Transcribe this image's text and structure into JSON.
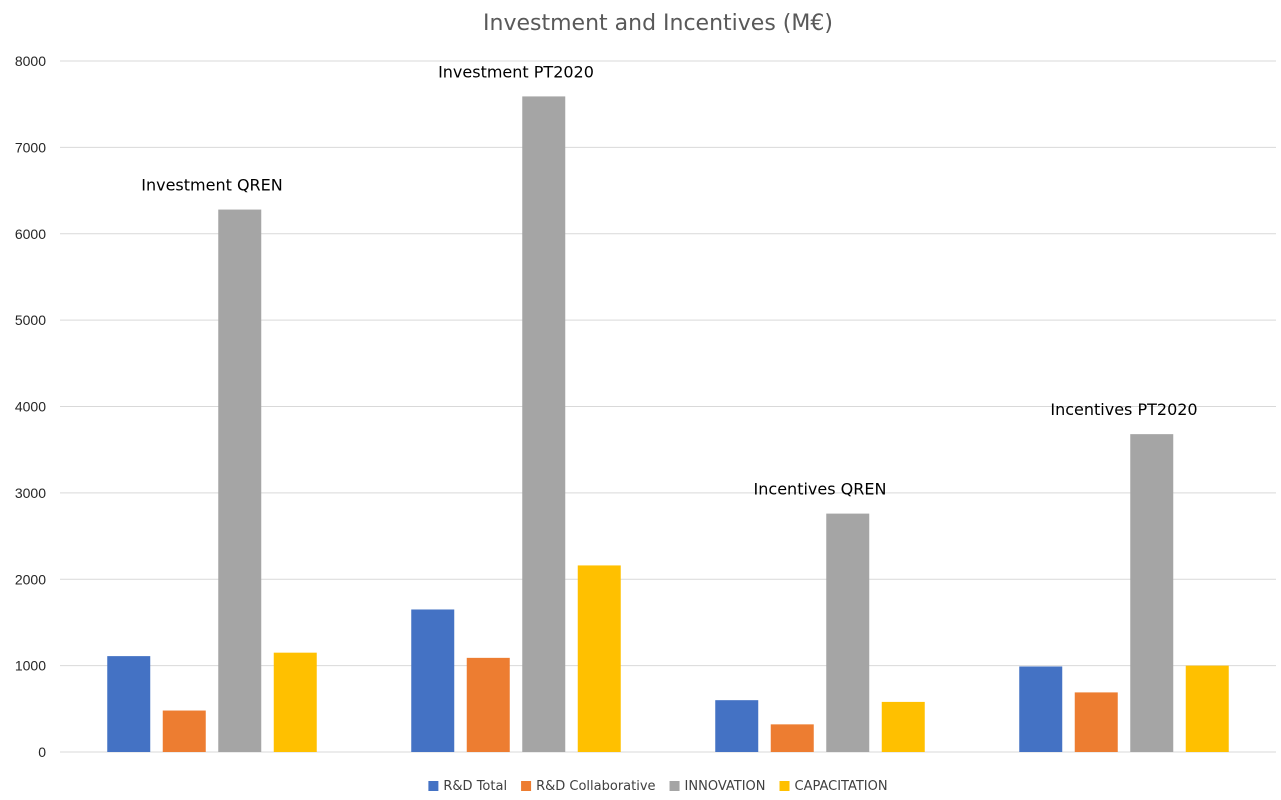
{
  "chart_data": {
    "type": "bar",
    "title": "Investment and Incentives (M€)",
    "xlabel": "",
    "ylabel": "",
    "ylim": [
      0,
      8000
    ],
    "yticks": [
      0,
      1000,
      2000,
      3000,
      4000,
      5000,
      6000,
      7000,
      8000
    ],
    "grid": true,
    "legend_position": "bottom",
    "categories": [
      "Investment QREN",
      "Investment PT2020",
      "Incentives QREN",
      "Incentives PT2020"
    ],
    "series": [
      {
        "name": "R&D Total",
        "color": "#4472C4",
        "values": [
          1110,
          1650,
          600,
          990
        ]
      },
      {
        "name": "R&D Collaborative",
        "color": "#ED7D31",
        "values": [
          480,
          1090,
          320,
          690
        ]
      },
      {
        "name": "INNOVATION",
        "color": "#A5A5A5",
        "values": [
          6280,
          7590,
          2760,
          3680
        ]
      },
      {
        "name": "CAPACITATION",
        "color": "#FFC000",
        "values": [
          1150,
          2160,
          580,
          1000
        ]
      }
    ]
  }
}
